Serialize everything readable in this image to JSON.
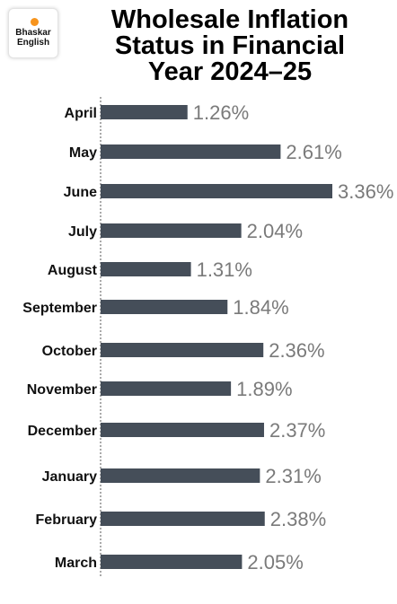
{
  "logo": {
    "line1": "Bhaskar",
    "line2": "English",
    "dot_color": "#f7941d"
  },
  "title": {
    "line1": "Wholesale Inflation",
    "line2": "Status in Financial",
    "line3": "Year 2024–25"
  },
  "colors": {
    "bar": "#454e59",
    "value_text": "#7a7a7a",
    "axis": "#555555"
  },
  "chart_data": {
    "type": "bar",
    "orientation": "horizontal",
    "title": "Wholesale Inflation Status in Financial Year 2024–25",
    "categories": [
      "April",
      "May",
      "June",
      "July",
      "August",
      "September",
      "October",
      "November",
      "December",
      "January",
      "February",
      "March"
    ],
    "values": [
      1.26,
      2.61,
      3.36,
      2.04,
      1.31,
      1.84,
      2.36,
      1.89,
      2.37,
      2.31,
      2.38,
      2.05
    ],
    "value_labels": [
      "1.26%",
      "2.61%",
      "3.36%",
      "2.04%",
      "1.31%",
      "1.84%",
      "2.36%",
      "1.89%",
      "2.37%",
      "2.31%",
      "2.38%",
      "2.05%"
    ],
    "unit": "%",
    "xlim": [
      0,
      3.36
    ],
    "grid": false,
    "axis_line": "dotted"
  }
}
